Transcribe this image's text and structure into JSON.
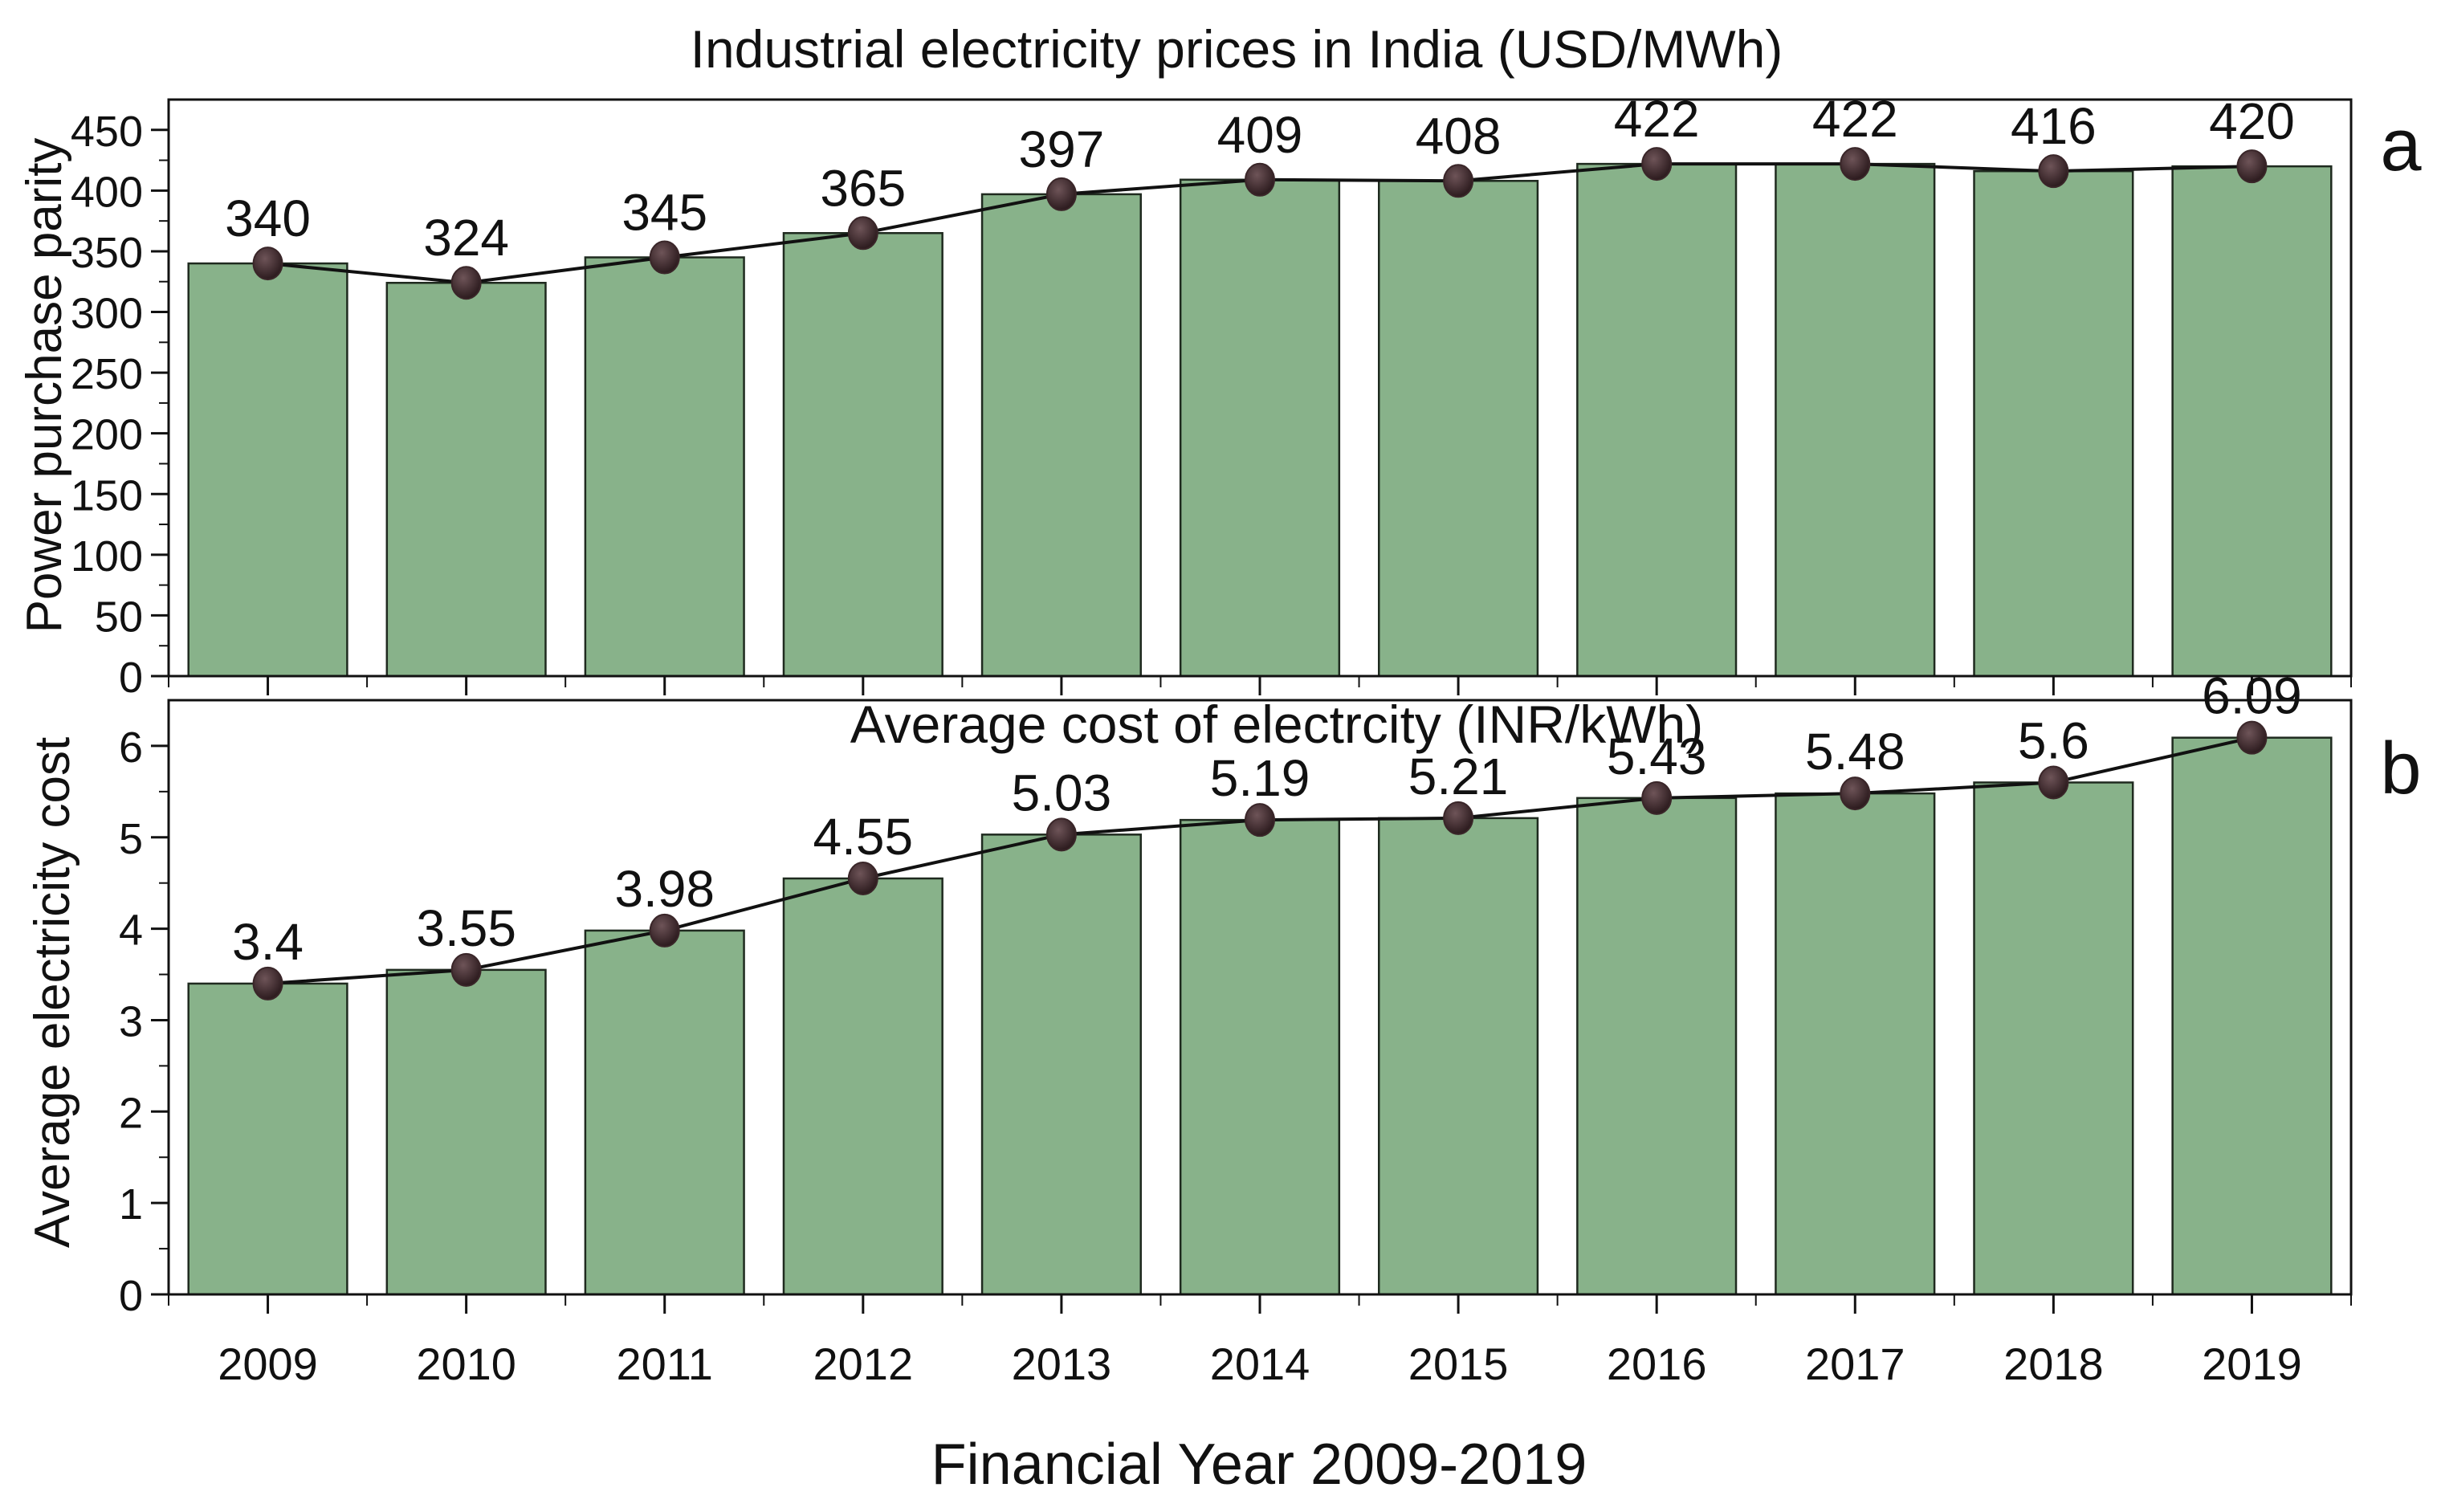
{
  "chart_data": [
    {
      "type": "bar",
      "panel_letter": "a",
      "title": "Industrial electricity prices in India (USD/MWh)",
      "ylabel": "Power purchase parity",
      "ylim": [
        0,
        475
      ],
      "yticks": [
        "0",
        "50",
        "100",
        "150",
        "200",
        "250",
        "300",
        "350",
        "400",
        "450"
      ],
      "categories": [
        "2009",
        "2010",
        "2011",
        "2012",
        "2013",
        "2014",
        "2015",
        "2016",
        "2017",
        "2018",
        "2019"
      ],
      "values": [
        340,
        324,
        345,
        365,
        397,
        409,
        408,
        422,
        422,
        416,
        420
      ],
      "value_labels": [
        "340",
        "324",
        "345",
        "365",
        "397",
        "409",
        "408",
        "422",
        "422",
        "416",
        "420"
      ],
      "overlay": "line-with-markers"
    },
    {
      "type": "bar",
      "panel_letter": "b",
      "title": "Average cost of electrcity (INR/kWh)",
      "ylabel": "Average electricity cost",
      "ylim": [
        0,
        6.5
      ],
      "yticks": [
        "0",
        "1",
        "2",
        "3",
        "4",
        "5",
        "6"
      ],
      "categories": [
        "2009",
        "2010",
        "2011",
        "2012",
        "2013",
        "2014",
        "2015",
        "2016",
        "2017",
        "2018",
        "2019"
      ],
      "values": [
        3.4,
        3.55,
        3.98,
        4.55,
        5.03,
        5.19,
        5.21,
        5.43,
        5.48,
        5.6,
        6.09
      ],
      "value_labels": [
        "3.4",
        "3.55",
        "3.98",
        "4.55",
        "5.03",
        "5.19",
        "5.21",
        "5.43",
        "5.48",
        "5.6",
        "6.09"
      ],
      "overlay": "line-with-markers"
    }
  ],
  "xlabel": "Financial Year 2009-2019",
  "colors": {
    "bar_fill": "#88b28a",
    "bar_stroke": "#1f2a1f",
    "line": "#111111",
    "marker": "#3a2629",
    "axis": "#111111"
  }
}
